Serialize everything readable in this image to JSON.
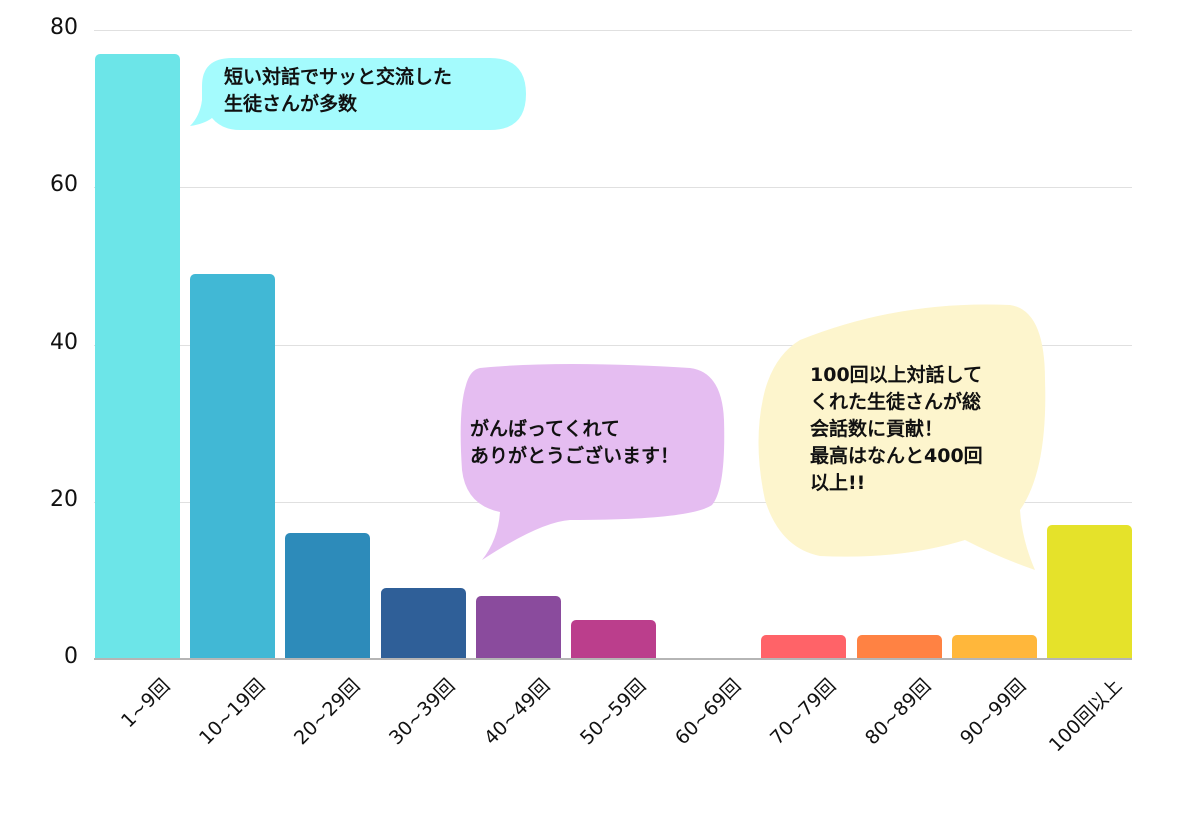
{
  "chart_data": {
    "type": "bar",
    "title": "",
    "xlabel": "",
    "ylabel": "",
    "ylim": [
      0,
      80
    ],
    "yticks": [
      0,
      20,
      40,
      60,
      80
    ],
    "grid": true,
    "legend_position": "top (clipped)",
    "categories": [
      "1~9回",
      "10~19回",
      "20~29回",
      "30~39回",
      "40~49回",
      "50~59回",
      "60~69回",
      "70~79回",
      "80~89回",
      "90~99回",
      "100回以上"
    ],
    "values": [
      77,
      49,
      16,
      9,
      8,
      5,
      0,
      3,
      3,
      3,
      17
    ],
    "colors": [
      "#6ce5e8",
      "#41b8d5",
      "#2d8bba",
      "#2f5f98",
      "#8a4b9d",
      "#bb3e8c",
      "#cccccc",
      "#ff6368",
      "#ff8243",
      "#ffb73b",
      "#e5e22a"
    ],
    "annotations": [
      {
        "lines": [
          "短い対話でサッと交流した",
          "生徒さんが多数"
        ],
        "color": "#a4fbfd",
        "points_to": "1~9回"
      },
      {
        "lines": [
          "がんばってくれて",
          "ありがとうございます！"
        ],
        "color": "#e5bdf1",
        "points_to": "30~39回"
      },
      {
        "lines": [
          "100回以上対話して",
          "くれた生徒さんが総",
          "会話数に貢献！",
          "最高はなんと400回",
          "以上!!"
        ],
        "color": "#fdf5cd",
        "points_to": "100回以上"
      }
    ]
  }
}
